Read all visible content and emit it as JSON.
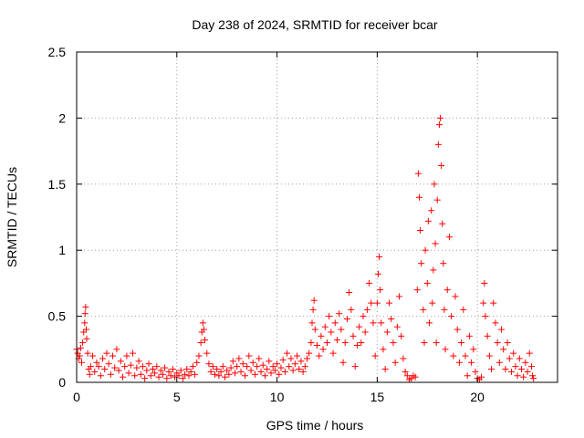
{
  "chart_data": {
    "type": "scatter",
    "title": "Day 238 of 2024, SRMTID for receiver bcar",
    "xlabel": "GPS time / hours",
    "ylabel": "SRMTID / TECUs",
    "xlim": [
      0,
      24
    ],
    "ylim": [
      0,
      2.5
    ],
    "xticks": [
      0,
      5,
      10,
      15,
      20
    ],
    "yticks": [
      0,
      0.5,
      1,
      1.5,
      2,
      2.5
    ],
    "xtick_labels": [
      "0",
      "5",
      "10",
      "15",
      "20"
    ],
    "ytick_labels": [
      "0",
      "0.5",
      "1",
      "1.5",
      "2",
      "2.5"
    ],
    "grid": true,
    "marker": "+",
    "marker_color": "#ff0000",
    "series": [
      {
        "name": "bcar",
        "points": [
          [
            0.0,
            0.25
          ],
          [
            0.05,
            0.22
          ],
          [
            0.1,
            0.18
          ],
          [
            0.15,
            0.2
          ],
          [
            0.2,
            0.26
          ],
          [
            0.25,
            0.15
          ],
          [
            0.3,
            0.3
          ],
          [
            0.35,
            0.38
          ],
          [
            0.4,
            0.45
          ],
          [
            0.42,
            0.52
          ],
          [
            0.45,
            0.57
          ],
          [
            0.48,
            0.4
          ],
          [
            0.5,
            0.33
          ],
          [
            0.55,
            0.22
          ],
          [
            0.6,
            0.1
          ],
          [
            0.65,
            0.06
          ],
          [
            0.7,
            0.12
          ],
          [
            0.8,
            0.2
          ],
          [
            0.9,
            0.08
          ],
          [
            1.0,
            0.15
          ],
          [
            1.1,
            0.12
          ],
          [
            1.2,
            0.05
          ],
          [
            1.3,
            0.18
          ],
          [
            1.4,
            0.1
          ],
          [
            1.5,
            0.22
          ],
          [
            1.6,
            0.14
          ],
          [
            1.7,
            0.06
          ],
          [
            1.8,
            0.2
          ],
          [
            1.9,
            0.11
          ],
          [
            2.0,
            0.25
          ],
          [
            2.1,
            0.09
          ],
          [
            2.2,
            0.16
          ],
          [
            2.3,
            0.04
          ],
          [
            2.4,
            0.12
          ],
          [
            2.5,
            0.2
          ],
          [
            2.6,
            0.07
          ],
          [
            2.7,
            0.13
          ],
          [
            2.8,
            0.22
          ],
          [
            2.9,
            0.05
          ],
          [
            3.0,
            0.11
          ],
          [
            3.1,
            0.16
          ],
          [
            3.2,
            0.06
          ],
          [
            3.3,
            0.12
          ],
          [
            3.4,
            0.03
          ],
          [
            3.5,
            0.09
          ],
          [
            3.6,
            0.14
          ],
          [
            3.7,
            0.05
          ],
          [
            3.8,
            0.1
          ],
          [
            3.9,
            0.07
          ],
          [
            4.0,
            0.12
          ],
          [
            4.1,
            0.04
          ],
          [
            4.2,
            0.09
          ],
          [
            4.3,
            0.06
          ],
          [
            4.4,
            0.11
          ],
          [
            4.5,
            0.03
          ],
          [
            4.6,
            0.08
          ],
          [
            4.7,
            0.05
          ],
          [
            4.8,
            0.1
          ],
          [
            4.9,
            0.04
          ],
          [
            5.0,
            0.07
          ],
          [
            5.1,
            0.05
          ],
          [
            5.2,
            0.09
          ],
          [
            5.3,
            0.03
          ],
          [
            5.4,
            0.06
          ],
          [
            5.5,
            0.1
          ],
          [
            5.6,
            0.05
          ],
          [
            5.7,
            0.08
          ],
          [
            5.8,
            0.12
          ],
          [
            5.9,
            0.06
          ],
          [
            6.0,
            0.15
          ],
          [
            6.1,
            0.2
          ],
          [
            6.2,
            0.3
          ],
          [
            6.25,
            0.38
          ],
          [
            6.3,
            0.45
          ],
          [
            6.35,
            0.4
          ],
          [
            6.4,
            0.32
          ],
          [
            6.5,
            0.22
          ],
          [
            6.6,
            0.14
          ],
          [
            6.7,
            0.08
          ],
          [
            6.8,
            0.12
          ],
          [
            6.9,
            0.06
          ],
          [
            7.0,
            0.1
          ],
          [
            7.1,
            0.05
          ],
          [
            7.2,
            0.08
          ],
          [
            7.3,
            0.12
          ],
          [
            7.4,
            0.04
          ],
          [
            7.5,
            0.09
          ],
          [
            7.6,
            0.06
          ],
          [
            7.7,
            0.11
          ],
          [
            7.8,
            0.16
          ],
          [
            7.9,
            0.07
          ],
          [
            8.0,
            0.12
          ],
          [
            8.1,
            0.18
          ],
          [
            8.2,
            0.08
          ],
          [
            8.3,
            0.14
          ],
          [
            8.4,
            0.05
          ],
          [
            8.5,
            0.12
          ],
          [
            8.6,
            0.2
          ],
          [
            8.7,
            0.09
          ],
          [
            8.8,
            0.15
          ],
          [
            8.9,
            0.06
          ],
          [
            9.0,
            0.12
          ],
          [
            9.1,
            0.18
          ],
          [
            9.2,
            0.08
          ],
          [
            9.3,
            0.13
          ],
          [
            9.4,
            0.05
          ],
          [
            9.5,
            0.1
          ],
          [
            9.6,
            0.16
          ],
          [
            9.7,
            0.07
          ],
          [
            9.8,
            0.12
          ],
          [
            9.9,
            0.09
          ],
          [
            10.0,
            0.14
          ],
          [
            10.1,
            0.06
          ],
          [
            10.2,
            0.11
          ],
          [
            10.3,
            0.17
          ],
          [
            10.4,
            0.08
          ],
          [
            10.5,
            0.22
          ],
          [
            10.6,
            0.12
          ],
          [
            10.7,
            0.18
          ],
          [
            10.8,
            0.09
          ],
          [
            10.9,
            0.14
          ],
          [
            11.0,
            0.2
          ],
          [
            11.1,
            0.1
          ],
          [
            11.2,
            0.16
          ],
          [
            11.3,
            0.08
          ],
          [
            11.4,
            0.12
          ],
          [
            11.5,
            0.18
          ],
          [
            11.6,
            0.22
          ],
          [
            11.7,
            0.3
          ],
          [
            11.75,
            0.45
          ],
          [
            11.8,
            0.55
          ],
          [
            11.85,
            0.62
          ],
          [
            11.9,
            0.4
          ],
          [
            12.0,
            0.28
          ],
          [
            12.1,
            0.2
          ],
          [
            12.2,
            0.35
          ],
          [
            12.3,
            0.25
          ],
          [
            12.4,
            0.42
          ],
          [
            12.5,
            0.3
          ],
          [
            12.6,
            0.5
          ],
          [
            12.7,
            0.38
          ],
          [
            12.8,
            0.22
          ],
          [
            12.9,
            0.45
          ],
          [
            13.0,
            0.32
          ],
          [
            13.1,
            0.52
          ],
          [
            13.2,
            0.4
          ],
          [
            13.3,
            0.15
          ],
          [
            13.4,
            0.3
          ],
          [
            13.5,
            0.48
          ],
          [
            13.6,
            0.68
          ],
          [
            13.7,
            0.55
          ],
          [
            13.8,
            0.35
          ],
          [
            13.9,
            0.12
          ],
          [
            14.0,
            0.28
          ],
          [
            14.1,
            0.42
          ],
          [
            14.2,
            0.3
          ],
          [
            14.3,
            0.5
          ],
          [
            14.4,
            0.38
          ],
          [
            14.5,
            0.55
          ],
          [
            14.6,
            0.75
          ],
          [
            14.7,
            0.6
          ],
          [
            14.8,
            0.45
          ],
          [
            14.9,
            0.2
          ],
          [
            15.0,
            0.6
          ],
          [
            15.05,
            0.82
          ],
          [
            15.1,
            0.95
          ],
          [
            15.15,
            0.7
          ],
          [
            15.2,
            0.45
          ],
          [
            15.3,
            0.25
          ],
          [
            15.4,
            0.1
          ],
          [
            15.5,
            0.38
          ],
          [
            15.6,
            0.6
          ],
          [
            15.7,
            0.48
          ],
          [
            15.8,
            0.3
          ],
          [
            15.9,
            0.15
          ],
          [
            16.0,
            0.42
          ],
          [
            16.1,
            0.65
          ],
          [
            16.2,
            0.35
          ],
          [
            16.3,
            0.18
          ],
          [
            16.4,
            0.08
          ],
          [
            16.5,
            0.05
          ],
          [
            16.6,
            0.02
          ],
          [
            16.7,
            0.03
          ],
          [
            16.8,
            0.05
          ],
          [
            16.9,
            0.04
          ],
          [
            17.0,
            0.7
          ],
          [
            17.05,
            1.58
          ],
          [
            17.1,
            1.4
          ],
          [
            17.15,
            1.15
          ],
          [
            17.2,
            0.9
          ],
          [
            17.3,
            0.55
          ],
          [
            17.35,
            0.3
          ],
          [
            17.4,
            1.0
          ],
          [
            17.5,
            0.75
          ],
          [
            17.55,
            1.22
          ],
          [
            17.6,
            0.45
          ],
          [
            17.7,
            1.3
          ],
          [
            17.75,
            0.6
          ],
          [
            17.8,
            0.85
          ],
          [
            17.85,
            1.5
          ],
          [
            17.9,
            1.05
          ],
          [
            17.95,
            0.3
          ],
          [
            18.0,
            1.38
          ],
          [
            18.05,
            1.8
          ],
          [
            18.1,
            1.95
          ],
          [
            18.15,
            2.0
          ],
          [
            18.2,
            1.64
          ],
          [
            18.25,
            1.2
          ],
          [
            18.3,
            0.9
          ],
          [
            18.35,
            0.55
          ],
          [
            18.4,
            0.25
          ],
          [
            18.5,
            0.7
          ],
          [
            18.6,
            1.1
          ],
          [
            18.7,
            0.5
          ],
          [
            18.8,
            0.2
          ],
          [
            18.9,
            0.65
          ],
          [
            19.0,
            0.4
          ],
          [
            19.1,
            0.15
          ],
          [
            19.2,
            0.3
          ],
          [
            19.3,
            0.55
          ],
          [
            19.4,
            0.2
          ],
          [
            19.5,
            0.05
          ],
          [
            19.6,
            0.35
          ],
          [
            19.7,
            0.15
          ],
          [
            19.8,
            0.25
          ],
          [
            19.9,
            0.08
          ],
          [
            20.0,
            0.03
          ],
          [
            20.1,
            0.02
          ],
          [
            20.2,
            0.04
          ],
          [
            20.3,
            0.6
          ],
          [
            20.35,
            0.75
          ],
          [
            20.4,
            0.5
          ],
          [
            20.5,
            0.35
          ],
          [
            20.6,
            0.2
          ],
          [
            20.7,
            0.1
          ],
          [
            20.8,
            0.6
          ],
          [
            20.9,
            0.45
          ],
          [
            21.0,
            0.3
          ],
          [
            21.1,
            0.15
          ],
          [
            21.2,
            0.4
          ],
          [
            21.3,
            0.25
          ],
          [
            21.4,
            0.1
          ],
          [
            21.5,
            0.3
          ],
          [
            21.6,
            0.18
          ],
          [
            21.7,
            0.08
          ],
          [
            21.8,
            0.22
          ],
          [
            21.9,
            0.12
          ],
          [
            22.0,
            0.05
          ],
          [
            22.1,
            0.18
          ],
          [
            22.2,
            0.1
          ],
          [
            22.3,
            0.04
          ],
          [
            22.4,
            0.15
          ],
          [
            22.5,
            0.08
          ],
          [
            22.6,
            0.22
          ],
          [
            22.7,
            0.12
          ],
          [
            22.75,
            0.05
          ],
          [
            22.8,
            0.03
          ]
        ]
      }
    ]
  }
}
